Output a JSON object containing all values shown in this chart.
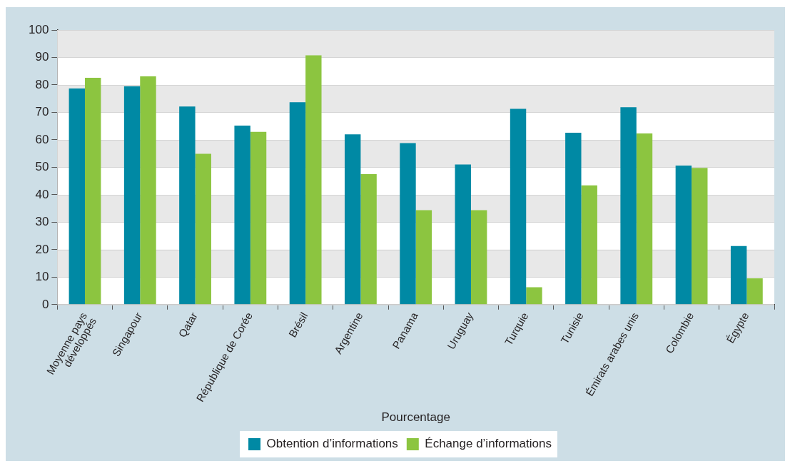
{
  "chart_data": {
    "type": "bar",
    "categories": [
      "Moyenne pays développés",
      "Singapour",
      "Qatar",
      "République de Corée",
      "Brésil",
      "Argentine",
      "Panama",
      "Uruguay",
      "Turquie",
      "Tunisie",
      "Émirats arabes unis",
      "Colombie",
      "Égypte"
    ],
    "series": [
      {
        "name": "Obtention d’informations",
        "color": "#0089a4",
        "values": [
          78.7,
          79.5,
          72.1,
          65.2,
          73.7,
          62.0,
          58.8,
          51.0,
          71.3,
          62.6,
          71.9,
          50.6,
          21.3
        ]
      },
      {
        "name": "Échange d’informations",
        "color": "#8cc540",
        "values": [
          82.6,
          83.1,
          54.9,
          62.9,
          90.8,
          47.5,
          34.4,
          34.4,
          6.3,
          43.4,
          62.3,
          49.8,
          9.6
        ]
      }
    ],
    "xlabel": "Pourcentage",
    "ylim": [
      0,
      100
    ],
    "yticks": [
      0,
      10,
      20,
      30,
      40,
      50,
      60,
      70,
      80,
      90,
      100
    ],
    "grid": "y",
    "legend": "bottom"
  }
}
